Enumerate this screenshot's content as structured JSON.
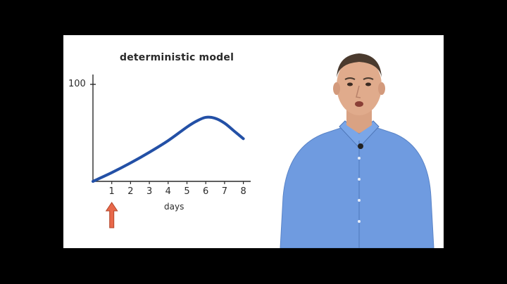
{
  "scene": {
    "background": "#000000",
    "board_color": "#ffffff",
    "curve_color": "#2350a6",
    "arrow_color": "#e8684a",
    "shirt_color": "#6f9be0"
  },
  "chart_data": {
    "type": "line",
    "title": "deterministic model",
    "xlabel": "days",
    "ylabel": "",
    "y_tick_labels": [
      "100"
    ],
    "x_tick_labels": [
      "1",
      "2",
      "3",
      "4",
      "5",
      "6",
      "7",
      "8"
    ],
    "xlim": [
      0,
      8
    ],
    "ylim": [
      0,
      100
    ],
    "grid": false,
    "legend": "none",
    "series": [
      {
        "x": [
          0,
          1,
          2,
          3,
          4,
          5,
          5.5,
          6,
          6.5,
          7,
          7.5,
          8
        ],
        "y": [
          0,
          9,
          19,
          30,
          42,
          56,
          62,
          66,
          65,
          60,
          52,
          44
        ]
      }
    ],
    "annotations": [
      {
        "type": "arrow",
        "x": 1,
        "direction": "up"
      }
    ]
  }
}
